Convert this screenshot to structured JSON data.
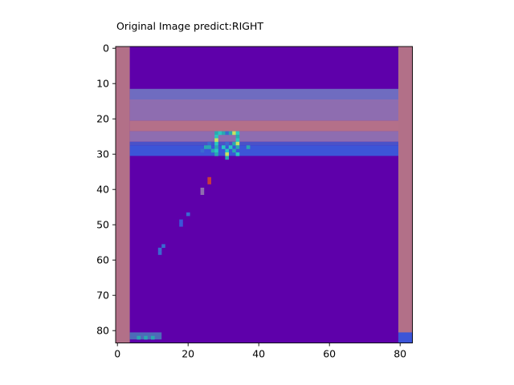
{
  "chart_data": {
    "type": "heatmap",
    "title": "Original Image predict:RIGHT",
    "xlabel": "",
    "ylabel": "",
    "xlim": [
      -0.5,
      83.5
    ],
    "ylim": [
      83.5,
      -0.5
    ],
    "x_ticks": [
      0,
      20,
      40,
      60,
      80
    ],
    "y_ticks": [
      0,
      10,
      20,
      30,
      40,
      50,
      60,
      70,
      80
    ],
    "grid": false,
    "colors": {
      "background": "#5e00aa",
      "wall": "#b27088",
      "band_light": "#6f6cc0",
      "band_mid": "#8e6db0",
      "band_pink": "#b47089",
      "band_blue": "#4a52c8",
      "band_bright": "#3c55d8",
      "paddle_area": "#4d6bb8",
      "highlight_cyan": "#28c8c0",
      "highlight_yellow": "#c8e060",
      "highlight_teal": "#2aa8b0",
      "highlight_blue": "#3a6ad0",
      "highlight_red": "#c83c3c"
    },
    "regions": [
      {
        "x0": 0,
        "x1": 4,
        "y0": 0,
        "y1": 84,
        "color": "wall"
      },
      {
        "x0": 80,
        "x1": 84,
        "y0": 0,
        "y1": 84,
        "color": "wall"
      },
      {
        "x0": 4,
        "x1": 80,
        "y0": 12,
        "y1": 15,
        "color": "band_light"
      },
      {
        "x0": 4,
        "x1": 80,
        "y0": 15,
        "y1": 21,
        "color": "band_mid"
      },
      {
        "x0": 4,
        "x1": 80,
        "y0": 21,
        "y1": 24,
        "color": "band_pink"
      },
      {
        "x0": 4,
        "x1": 80,
        "y0": 24,
        "y1": 27,
        "color": "band_mid"
      },
      {
        "x0": 4,
        "x1": 80,
        "y0": 27,
        "y1": 28,
        "color": "band_blue"
      },
      {
        "x0": 4,
        "x1": 80,
        "y0": 28,
        "y1": 31,
        "color": "band_bright"
      },
      {
        "x0": 80,
        "x1": 84,
        "y0": 81,
        "y1": 84,
        "color": "band_bright"
      },
      {
        "x0": 4,
        "x1": 13,
        "y0": 81,
        "y1": 83,
        "color": "paddle_area"
      }
    ],
    "pixels": [
      {
        "x": 28,
        "y": 24,
        "color": "highlight_teal"
      },
      {
        "x": 29,
        "y": 24,
        "color": "highlight_cyan"
      },
      {
        "x": 30,
        "y": 24,
        "color": "highlight_teal"
      },
      {
        "x": 31,
        "y": 24,
        "color": "highlight_blue"
      },
      {
        "x": 32,
        "y": 24,
        "color": "highlight_teal"
      },
      {
        "x": 33,
        "y": 24,
        "color": "highlight_yellow"
      },
      {
        "x": 34,
        "y": 24,
        "color": "highlight_cyan"
      },
      {
        "x": 28,
        "y": 25,
        "color": "highlight_cyan"
      },
      {
        "x": 34,
        "y": 25,
        "color": "highlight_teal"
      },
      {
        "x": 28,
        "y": 26,
        "color": "highlight_yellow"
      },
      {
        "x": 34,
        "y": 26,
        "color": "highlight_cyan"
      },
      {
        "x": 26,
        "y": 27,
        "color": "highlight_blue"
      },
      {
        "x": 28,
        "y": 27,
        "color": "highlight_cyan"
      },
      {
        "x": 31,
        "y": 27,
        "color": "highlight_blue"
      },
      {
        "x": 33,
        "y": 27,
        "color": "highlight_teal"
      },
      {
        "x": 34,
        "y": 27,
        "color": "highlight_yellow"
      },
      {
        "x": 25,
        "y": 28,
        "color": "highlight_teal"
      },
      {
        "x": 26,
        "y": 28,
        "color": "highlight_teal"
      },
      {
        "x": 28,
        "y": 28,
        "color": "highlight_teal"
      },
      {
        "x": 30,
        "y": 28,
        "color": "highlight_cyan"
      },
      {
        "x": 32,
        "y": 28,
        "color": "highlight_cyan"
      },
      {
        "x": 34,
        "y": 28,
        "color": "highlight_teal"
      },
      {
        "x": 37,
        "y": 28,
        "color": "highlight_teal"
      },
      {
        "x": 24,
        "y": 29,
        "color": "highlight_blue"
      },
      {
        "x": 27,
        "y": 29,
        "color": "highlight_teal"
      },
      {
        "x": 28,
        "y": 29,
        "color": "highlight_cyan"
      },
      {
        "x": 31,
        "y": 29,
        "color": "highlight_cyan"
      },
      {
        "x": 33,
        "y": 29,
        "color": "highlight_teal"
      },
      {
        "x": 28,
        "y": 30,
        "color": "highlight_teal"
      },
      {
        "x": 34,
        "y": 30,
        "color": "highlight_cyan"
      },
      {
        "x": 31,
        "y": 30,
        "color": "highlight_yellow"
      },
      {
        "x": 31,
        "y": 31,
        "color": "highlight_teal"
      },
      {
        "x": 26,
        "y": 37,
        "color": "highlight_red"
      },
      {
        "x": 26,
        "y": 38,
        "color": "highlight_red"
      },
      {
        "x": 24,
        "y": 40,
        "color": "band_mid"
      },
      {
        "x": 24,
        "y": 41,
        "color": "band_mid"
      },
      {
        "x": 20,
        "y": 47,
        "color": "highlight_blue"
      },
      {
        "x": 18,
        "y": 49,
        "color": "band_bright"
      },
      {
        "x": 18,
        "y": 50,
        "color": "band_bright"
      },
      {
        "x": 13,
        "y": 56,
        "color": "highlight_blue"
      },
      {
        "x": 12,
        "y": 57,
        "color": "highlight_blue"
      },
      {
        "x": 12,
        "y": 58,
        "color": "highlight_blue"
      },
      {
        "x": 6,
        "y": 82,
        "color": "highlight_teal"
      },
      {
        "x": 8,
        "y": 82,
        "color": "highlight_teal"
      },
      {
        "x": 10,
        "y": 82,
        "color": "highlight_teal"
      }
    ]
  }
}
